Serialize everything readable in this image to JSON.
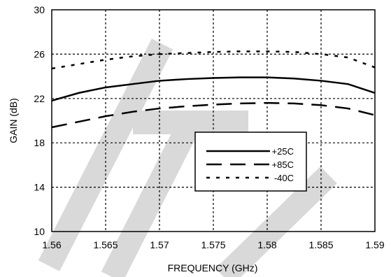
{
  "chart_data": {
    "type": "line",
    "xlabel": "FREQUENCY (GHz)",
    "ylabel": "GAIN (dB)",
    "xlim": [
      1.56,
      1.59
    ],
    "ylim": [
      10,
      30
    ],
    "x_ticks": [
      1.56,
      1.565,
      1.57,
      1.575,
      1.58,
      1.585,
      1.59
    ],
    "x_tick_labels": [
      "1.56",
      "1.565",
      "1.57",
      "1.575",
      "1.58",
      "1.585",
      "1.59"
    ],
    "y_ticks": [
      10,
      14,
      18,
      22,
      26,
      30
    ],
    "y_tick_labels": [
      "10",
      "14",
      "18",
      "22",
      "26",
      "30"
    ],
    "grid": true,
    "legend_position": "center-right",
    "x": [
      1.56,
      1.5625,
      1.565,
      1.5675,
      1.57,
      1.5725,
      1.575,
      1.5775,
      1.58,
      1.5825,
      1.585,
      1.5875,
      1.59
    ],
    "series": [
      {
        "name": "+25C",
        "style": "solid",
        "values": [
          21.8,
          22.5,
          23.0,
          23.3,
          23.6,
          23.75,
          23.85,
          23.9,
          23.9,
          23.8,
          23.6,
          23.3,
          22.5
        ]
      },
      {
        "name": "+85C",
        "style": "dashed",
        "values": [
          19.4,
          19.9,
          20.4,
          20.8,
          21.1,
          21.3,
          21.45,
          21.55,
          21.6,
          21.55,
          21.4,
          21.1,
          20.5
        ]
      },
      {
        "name": "-40C",
        "style": "dotted",
        "values": [
          24.7,
          25.1,
          25.5,
          25.8,
          26.0,
          26.1,
          26.2,
          26.25,
          26.25,
          26.2,
          26.0,
          25.7,
          24.8
        ]
      }
    ]
  },
  "colors": {
    "line": "#000000",
    "grid": "#000000",
    "watermark": "#d9d9d9"
  }
}
